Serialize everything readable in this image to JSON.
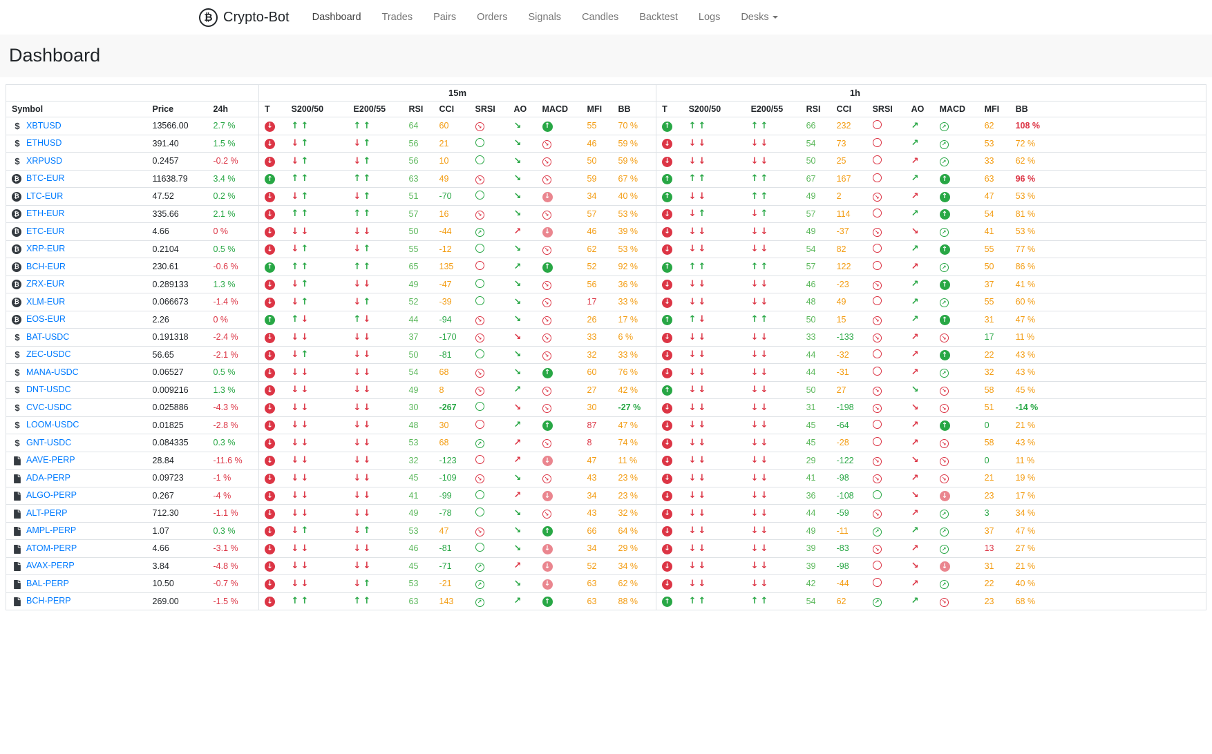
{
  "nav": {
    "brand": "Crypto-Bot",
    "items": [
      {
        "label": "Dashboard",
        "active": true
      },
      {
        "label": "Trades"
      },
      {
        "label": "Pairs"
      },
      {
        "label": "Orders"
      },
      {
        "label": "Signals"
      },
      {
        "label": "Candles"
      },
      {
        "label": "Backtest"
      },
      {
        "label": "Logs"
      },
      {
        "label": "Desks",
        "caret": true
      }
    ]
  },
  "page": {
    "title": "Dashboard"
  },
  "colors": {
    "green": "#28a745",
    "red": "#dc3545",
    "orange": "#f39c12",
    "rsi_green": "#5cb85c",
    "pink": "#ea868f",
    "link_blue": "#007bff"
  },
  "table": {
    "groups": [
      "15m",
      "1h"
    ],
    "base_headers": [
      "Symbol",
      "Price",
      "24h"
    ],
    "group_headers": [
      "T",
      "S200/50",
      "E200/55",
      "RSI",
      "CCI",
      "SRSI",
      "AO",
      "MACD",
      "MFI",
      "BB"
    ],
    "row_format": [
      "icon",
      "symbol",
      "price",
      "change_24h",
      "change_color",
      "tf_15m",
      "tf_1h"
    ],
    "tf_format": [
      "trend",
      "s200_50_arrows",
      "e200_55_arrows",
      "rsi",
      "cci",
      "cci_color",
      "srsi_icon",
      "ao_icon",
      "macd_icon",
      "mfi",
      "mfi_color",
      "bb",
      "bb_color"
    ],
    "rows": [
      [
        "usd",
        "XBTUSD",
        "13566.00",
        "2.7 %",
        "g",
        [
          "d",
          "uu",
          "uu",
          "64",
          "60",
          "o",
          "xr",
          "seg",
          "fg",
          "55",
          "o",
          "70 %",
          "o"
        ],
        [
          "u",
          "uu",
          "uu",
          "66",
          "232",
          "o",
          "or",
          "neg",
          "og",
          "62",
          "o",
          "108 %",
          "rb"
        ]
      ],
      [
        "usd",
        "ETHUSD",
        "391.40",
        "1.5 %",
        "g",
        [
          "d",
          "du",
          "du",
          "56",
          "21",
          "o",
          "og",
          "seg",
          "or",
          "46",
          "o",
          "59 %",
          "o"
        ],
        [
          "d",
          "dd",
          "dd",
          "54",
          "73",
          "o",
          "or",
          "neg",
          "og",
          "53",
          "o",
          "72 %",
          "o"
        ]
      ],
      [
        "usd",
        "XRPUSD",
        "0.2457",
        "-0.2 %",
        "r",
        [
          "d",
          "du",
          "du",
          "56",
          "10",
          "o",
          "og",
          "seg",
          "or",
          "50",
          "o",
          "59 %",
          "o"
        ],
        [
          "d",
          "dd",
          "dd",
          "50",
          "25",
          "o",
          "or",
          "ner",
          "og",
          "33",
          "o",
          "62 %",
          "o"
        ]
      ],
      [
        "btc",
        "BTC-EUR",
        "11638.79",
        "3.4 %",
        "g",
        [
          "u",
          "uu",
          "uu",
          "63",
          "49",
          "o",
          "xr",
          "seg",
          "or",
          "59",
          "o",
          "67 %",
          "o"
        ],
        [
          "u",
          "uu",
          "uu",
          "67",
          "167",
          "o",
          "or",
          "neg",
          "fg",
          "63",
          "o",
          "96 %",
          "rb"
        ]
      ],
      [
        "btc",
        "LTC-EUR",
        "47.52",
        "0.2 %",
        "g",
        [
          "d",
          "du",
          "du",
          "51",
          "-70",
          "g",
          "og",
          "seg",
          "fr",
          "34",
          "o",
          "40 %",
          "o"
        ],
        [
          "u",
          "dd",
          "uu",
          "49",
          "2",
          "o",
          "xr",
          "ner",
          "fg",
          "47",
          "o",
          "53 %",
          "o"
        ]
      ],
      [
        "btc",
        "ETH-EUR",
        "335.66",
        "2.1 %",
        "g",
        [
          "d",
          "uu",
          "uu",
          "57",
          "16",
          "o",
          "xr",
          "seg",
          "or",
          "57",
          "o",
          "53 %",
          "o"
        ],
        [
          "d",
          "du",
          "du",
          "57",
          "114",
          "o",
          "or",
          "neg",
          "fg",
          "54",
          "o",
          "81 %",
          "o"
        ]
      ],
      [
        "btc",
        "ETC-EUR",
        "4.66",
        "0 %",
        "r",
        [
          "d",
          "dd",
          "dd",
          "50",
          "-44",
          "o",
          "ag",
          "ner",
          "fr",
          "46",
          "o",
          "39 %",
          "o"
        ],
        [
          "d",
          "dd",
          "dd",
          "49",
          "-37",
          "o",
          "xr",
          "ser",
          "og",
          "41",
          "o",
          "53 %",
          "o"
        ]
      ],
      [
        "btc",
        "XRP-EUR",
        "0.2104",
        "0.5 %",
        "g",
        [
          "d",
          "du",
          "du",
          "55",
          "-12",
          "o",
          "og",
          "seg",
          "or",
          "62",
          "o",
          "53 %",
          "o"
        ],
        [
          "d",
          "dd",
          "dd",
          "54",
          "82",
          "o",
          "or",
          "neg",
          "fg",
          "55",
          "o",
          "77 %",
          "o"
        ]
      ],
      [
        "btc",
        "BCH-EUR",
        "230.61",
        "-0.6 %",
        "r",
        [
          "u",
          "uu",
          "uu",
          "65",
          "135",
          "o",
          "or",
          "neg",
          "fg",
          "52",
          "o",
          "92 %",
          "o"
        ],
        [
          "u",
          "uu",
          "uu",
          "57",
          "122",
          "o",
          "or",
          "ner",
          "og",
          "50",
          "o",
          "86 %",
          "o"
        ]
      ],
      [
        "btc",
        "ZRX-EUR",
        "0.289133",
        "1.3 %",
        "g",
        [
          "d",
          "du",
          "dd",
          "49",
          "-47",
          "o",
          "og",
          "seg",
          "or",
          "56",
          "o",
          "36 %",
          "o"
        ],
        [
          "d",
          "dd",
          "dd",
          "46",
          "-23",
          "o",
          "xr",
          "neg",
          "fg",
          "37",
          "o",
          "41 %",
          "o"
        ]
      ],
      [
        "btc",
        "XLM-EUR",
        "0.066673",
        "-1.4 %",
        "r",
        [
          "d",
          "du",
          "du",
          "52",
          "-39",
          "o",
          "og",
          "seg",
          "or",
          "17",
          "r",
          "33 %",
          "o"
        ],
        [
          "d",
          "dd",
          "dd",
          "48",
          "49",
          "o",
          "or",
          "neg",
          "og",
          "55",
          "o",
          "60 %",
          "o"
        ]
      ],
      [
        "btc",
        "EOS-EUR",
        "2.26",
        "0 %",
        "r",
        [
          "u",
          "ud",
          "ud",
          "44",
          "-94",
          "g",
          "xr",
          "seg",
          "or",
          "26",
          "o",
          "17 %",
          "o"
        ],
        [
          "u",
          "ud",
          "uu",
          "50",
          "15",
          "o",
          "xr",
          "neg",
          "fg",
          "31",
          "o",
          "47 %",
          "o"
        ]
      ],
      [
        "usd",
        "BAT-USDC",
        "0.191318",
        "-2.4 %",
        "r",
        [
          "d",
          "dd",
          "dd",
          "37",
          "-170",
          "g",
          "xr",
          "ser",
          "or",
          "33",
          "o",
          "6 %",
          "o"
        ],
        [
          "d",
          "dd",
          "dd",
          "33",
          "-133",
          "g",
          "xr",
          "ner",
          "or",
          "17",
          "g",
          "11 %",
          "o"
        ]
      ],
      [
        "usd",
        "ZEC-USDC",
        "56.65",
        "-2.1 %",
        "r",
        [
          "d",
          "du",
          "dd",
          "50",
          "-81",
          "g",
          "og",
          "seg",
          "or",
          "32",
          "o",
          "33 %",
          "o"
        ],
        [
          "d",
          "dd",
          "dd",
          "44",
          "-32",
          "o",
          "or",
          "ner",
          "fg",
          "22",
          "o",
          "43 %",
          "o"
        ]
      ],
      [
        "usd",
        "MANA-USDC",
        "0.06527",
        "0.5 %",
        "g",
        [
          "d",
          "dd",
          "dd",
          "54",
          "68",
          "o",
          "xr",
          "seg",
          "fg",
          "60",
          "o",
          "76 %",
          "o"
        ],
        [
          "d",
          "dd",
          "dd",
          "44",
          "-31",
          "o",
          "or",
          "ner",
          "og",
          "32",
          "o",
          "43 %",
          "o"
        ]
      ],
      [
        "usd",
        "DNT-USDC",
        "0.009216",
        "1.3 %",
        "g",
        [
          "d",
          "dd",
          "dd",
          "49",
          "8",
          "o",
          "xr",
          "neg",
          "or",
          "27",
          "o",
          "42 %",
          "o"
        ],
        [
          "u",
          "dd",
          "dd",
          "50",
          "27",
          "o",
          "xr",
          "seg",
          "or",
          "58",
          "o",
          "45 %",
          "o"
        ]
      ],
      [
        "usd",
        "CVC-USDC",
        "0.025886",
        "-4.3 %",
        "r",
        [
          "d",
          "dd",
          "dd",
          "30",
          "-267",
          "gb",
          "og",
          "ser",
          "or",
          "30",
          "o",
          "-27 %",
          "gb"
        ],
        [
          "d",
          "dd",
          "dd",
          "31",
          "-198",
          "g",
          "xr",
          "ser",
          "or",
          "51",
          "o",
          "-14 %",
          "gb"
        ]
      ],
      [
        "usd",
        "LOOM-USDC",
        "0.01825",
        "-2.8 %",
        "r",
        [
          "d",
          "dd",
          "dd",
          "48",
          "30",
          "o",
          "or",
          "neg",
          "fg",
          "87",
          "r",
          "47 %",
          "o"
        ],
        [
          "d",
          "dd",
          "dd",
          "45",
          "-64",
          "g",
          "or",
          "ner",
          "fg",
          "0",
          "g",
          "21 %",
          "o"
        ]
      ],
      [
        "usd",
        "GNT-USDC",
        "0.084335",
        "0.3 %",
        "g",
        [
          "d",
          "dd",
          "dd",
          "53",
          "68",
          "o",
          "ag",
          "ner",
          "or",
          "8",
          "r",
          "74 %",
          "o"
        ],
        [
          "d",
          "dd",
          "dd",
          "45",
          "-28",
          "o",
          "or",
          "ner",
          "or",
          "58",
          "o",
          "43 %",
          "o"
        ]
      ],
      [
        "file",
        "AAVE-PERP",
        "28.84",
        "-11.6 %",
        "r",
        [
          "d",
          "dd",
          "dd",
          "32",
          "-123",
          "g",
          "or",
          "ner",
          "fr",
          "47",
          "o",
          "11 %",
          "o"
        ],
        [
          "d",
          "dd",
          "dd",
          "29",
          "-122",
          "g",
          "xr",
          "ser",
          "or",
          "0",
          "g",
          "11 %",
          "o"
        ]
      ],
      [
        "file",
        "ADA-PERP",
        "0.09723",
        "-1 %",
        "r",
        [
          "d",
          "dd",
          "dd",
          "45",
          "-109",
          "g",
          "xr",
          "seg",
          "or",
          "43",
          "o",
          "23 %",
          "o"
        ],
        [
          "d",
          "dd",
          "dd",
          "41",
          "-98",
          "g",
          "xr",
          "ner",
          "or",
          "21",
          "o",
          "19 %",
          "o"
        ]
      ],
      [
        "file",
        "ALGO-PERP",
        "0.267",
        "-4 %",
        "r",
        [
          "d",
          "dd",
          "dd",
          "41",
          "-99",
          "g",
          "og",
          "ner",
          "fr",
          "34",
          "o",
          "23 %",
          "o"
        ],
        [
          "d",
          "dd",
          "dd",
          "36",
          "-108",
          "g",
          "og",
          "ser",
          "fr",
          "23",
          "o",
          "17 %",
          "o"
        ]
      ],
      [
        "file",
        "ALT-PERP",
        "712.30",
        "-1.1 %",
        "r",
        [
          "d",
          "dd",
          "dd",
          "49",
          "-78",
          "g",
          "og",
          "seg",
          "or",
          "43",
          "o",
          "32 %",
          "o"
        ],
        [
          "d",
          "dd",
          "dd",
          "44",
          "-59",
          "g",
          "xr",
          "ner",
          "og",
          "3",
          "g",
          "34 %",
          "o"
        ]
      ],
      [
        "file",
        "AMPL-PERP",
        "1.07",
        "0.3 %",
        "g",
        [
          "d",
          "du",
          "du",
          "53",
          "47",
          "o",
          "xr",
          "seg",
          "fg",
          "66",
          "o",
          "64 %",
          "o"
        ],
        [
          "d",
          "dd",
          "dd",
          "49",
          "-11",
          "o",
          "ag",
          "neg",
          "og",
          "37",
          "o",
          "47 %",
          "o"
        ]
      ],
      [
        "file",
        "ATOM-PERP",
        "4.66",
        "-3.1 %",
        "r",
        [
          "d",
          "dd",
          "dd",
          "46",
          "-81",
          "g",
          "og",
          "seg",
          "fr",
          "34",
          "o",
          "29 %",
          "o"
        ],
        [
          "d",
          "dd",
          "dd",
          "39",
          "-83",
          "g",
          "xr",
          "ner",
          "og",
          "13",
          "r",
          "27 %",
          "o"
        ]
      ],
      [
        "file",
        "AVAX-PERP",
        "3.84",
        "-4.8 %",
        "r",
        [
          "d",
          "dd",
          "dd",
          "45",
          "-71",
          "g",
          "ag",
          "ner",
          "fr",
          "52",
          "o",
          "34 %",
          "o"
        ],
        [
          "d",
          "dd",
          "dd",
          "39",
          "-98",
          "g",
          "or",
          "ser",
          "fr",
          "31",
          "o",
          "21 %",
          "o"
        ]
      ],
      [
        "file",
        "BAL-PERP",
        "10.50",
        "-0.7 %",
        "r",
        [
          "d",
          "dd",
          "du",
          "53",
          "-21",
          "o",
          "ag",
          "seg",
          "fr",
          "63",
          "o",
          "62 %",
          "o"
        ],
        [
          "d",
          "dd",
          "dd",
          "42",
          "-44",
          "o",
          "or",
          "ner",
          "og",
          "22",
          "o",
          "40 %",
          "o"
        ]
      ],
      [
        "file",
        "BCH-PERP",
        "269.00",
        "-1.5 %",
        "r",
        [
          "d",
          "uu",
          "uu",
          "63",
          "143",
          "o",
          "ag",
          "neg",
          "fg",
          "63",
          "o",
          "88 %",
          "o"
        ],
        [
          "u",
          "uu",
          "uu",
          "54",
          "62",
          "o",
          "ag",
          "neg",
          "or",
          "23",
          "o",
          "68 %",
          "o"
        ]
      ]
    ]
  }
}
